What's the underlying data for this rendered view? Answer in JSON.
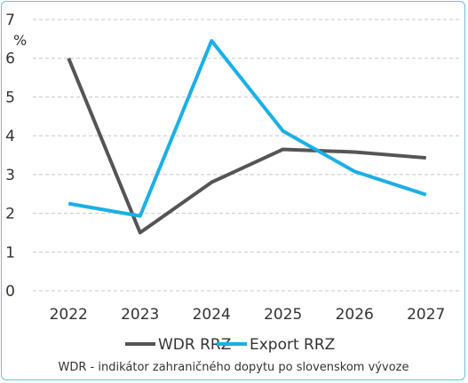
{
  "chart_data": {
    "type": "line",
    "title": "",
    "xlabel": "",
    "ylabel": "%",
    "categories": [
      "2022",
      "2023",
      "2024",
      "2025",
      "2026",
      "2027"
    ],
    "ylim": [
      0,
      7
    ],
    "yticks": [
      0,
      1,
      2,
      3,
      4,
      5,
      6,
      7
    ],
    "grid": "horizontal-dashed",
    "legend_position": "bottom",
    "series": [
      {
        "name": "WDR RRZ",
        "color": "#555555",
        "values": [
          6.0,
          1.5,
          2.8,
          3.65,
          3.58,
          3.43
        ]
      },
      {
        "name": "Export RRZ",
        "color": "#1ab0e6",
        "values": [
          2.25,
          1.93,
          6.45,
          4.12,
          3.08,
          2.48
        ]
      }
    ],
    "note": "WDR - indikátor zahraničného dopytu po slovenskom vývoze"
  }
}
